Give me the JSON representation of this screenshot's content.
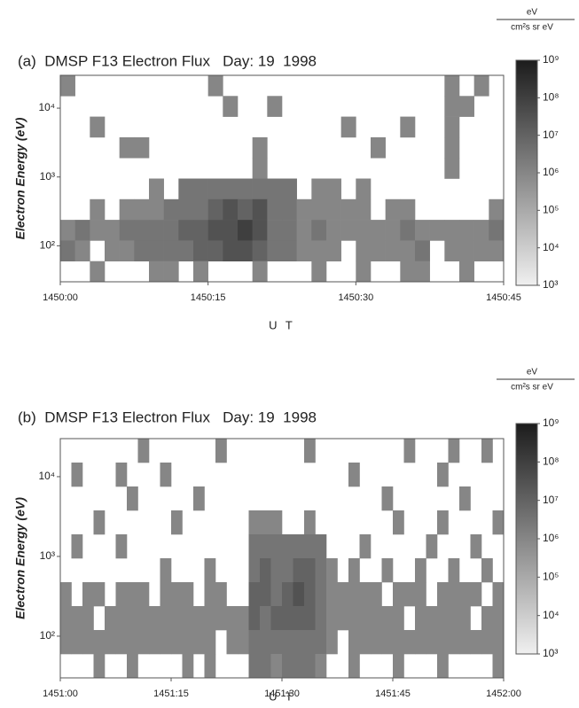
{
  "chart_data": [
    {
      "type": "heatmap",
      "title": "(a)  DMSP F13 Electron Flux   Day: 19  1998",
      "xlabel": "U T",
      "ylabel": "Electron Energy (eV)",
      "xlim": [
        0,
        45
      ],
      "xticks": [
        {
          "value": 0,
          "label": "1450:00"
        },
        {
          "value": 15,
          "label": "1450:15"
        },
        {
          "value": 30,
          "label": "1450:30"
        },
        {
          "value": 45,
          "label": "1450:45"
        }
      ],
      "ylim": [
        30,
        30000
      ],
      "yscale": "log",
      "yticks": [
        {
          "value": 100,
          "label": "10²"
        },
        {
          "value": 1000,
          "label": "10³"
        },
        {
          "value": 10000,
          "label": "10⁴"
        }
      ],
      "zlim": [
        1000,
        1000000000
      ],
      "zscale": "log",
      "zticks": [
        {
          "value": 1000,
          "label": "10³"
        },
        {
          "value": 10000,
          "label": "10⁴"
        },
        {
          "value": 100000,
          "label": "10⁵"
        },
        {
          "value": 1000000,
          "label": "10⁶"
        },
        {
          "value": 10000000,
          "label": "10⁷"
        },
        {
          "value": 100000000,
          "label": "10⁸"
        },
        {
          "value": 1000000000,
          "label": "10⁹"
        }
      ],
      "colorbar_unit": {
        "numerator": "eV",
        "denominator": "cm²s sr eV"
      },
      "colors": [
        "#f0f0f0",
        "#1c1c1c"
      ],
      "z": [
        [
          1000000.0,
          null,
          null,
          null,
          null,
          null,
          null,
          null,
          null,
          null,
          1000000.0,
          null,
          null,
          null,
          null,
          null,
          null,
          null,
          null,
          null,
          null,
          null,
          null,
          null,
          null,
          null,
          1000000.0,
          null,
          1000000.0,
          null
        ],
        [
          null,
          null,
          null,
          null,
          null,
          null,
          null,
          null,
          null,
          null,
          null,
          1000000.0,
          null,
          null,
          1000000.0,
          null,
          null,
          null,
          null,
          null,
          null,
          null,
          null,
          null,
          null,
          null,
          1000000.0,
          1000000.0,
          null,
          null
        ],
        [
          null,
          null,
          1000000.0,
          null,
          null,
          null,
          null,
          null,
          null,
          null,
          null,
          null,
          null,
          null,
          null,
          null,
          null,
          null,
          null,
          1000000.0,
          null,
          null,
          null,
          1000000.0,
          null,
          null,
          1000000.0,
          null,
          null,
          null
        ],
        [
          null,
          null,
          null,
          null,
          1000000.0,
          1000000.0,
          null,
          null,
          null,
          null,
          null,
          null,
          null,
          1000000.0,
          null,
          null,
          null,
          null,
          null,
          null,
          null,
          1000000.0,
          null,
          null,
          null,
          null,
          1000000.0,
          null,
          null,
          null
        ],
        [
          null,
          null,
          null,
          null,
          null,
          null,
          null,
          null,
          null,
          null,
          null,
          null,
          null,
          1000000.0,
          null,
          null,
          null,
          null,
          null,
          null,
          null,
          null,
          null,
          null,
          null,
          null,
          1000000.0,
          null,
          null,
          null
        ],
        [
          null,
          null,
          null,
          null,
          null,
          null,
          1000000.0,
          null,
          3000000.0,
          3000000.0,
          3000000.0,
          3000000.0,
          3000000.0,
          3000000.0,
          3000000.0,
          3000000.0,
          null,
          1000000.0,
          1000000.0,
          null,
          1000000.0,
          null,
          null,
          null,
          null,
          null,
          null,
          null,
          null,
          null
        ],
        [
          null,
          null,
          1000000.0,
          null,
          1000000.0,
          1000000.0,
          1000000.0,
          3000000.0,
          3000000.0,
          3000000.0,
          10000000.0,
          30000000.0,
          10000000.0,
          30000000.0,
          3000000.0,
          3000000.0,
          1000000.0,
          1000000.0,
          1000000.0,
          1000000.0,
          1000000.0,
          null,
          1000000.0,
          1000000.0,
          null,
          null,
          null,
          null,
          null,
          1000000.0
        ],
        [
          1000000.0,
          3000000.0,
          1000000.0,
          1000000.0,
          3000000.0,
          3000000.0,
          3000000.0,
          3000000.0,
          10000000.0,
          10000000.0,
          30000000.0,
          30000000.0,
          100000000.0,
          30000000.0,
          3000000.0,
          3000000.0,
          1000000.0,
          3000000.0,
          1000000.0,
          1000000.0,
          1000000.0,
          1000000.0,
          1000000.0,
          3000000.0,
          1000000.0,
          1000000.0,
          1000000.0,
          1000000.0,
          1000000.0,
          3000000.0
        ],
        [
          3000000.0,
          1000000.0,
          null,
          1000000.0,
          1000000.0,
          3000000.0,
          3000000.0,
          3000000.0,
          3000000.0,
          10000000.0,
          10000000.0,
          30000000.0,
          30000000.0,
          10000000.0,
          3000000.0,
          3000000.0,
          1000000.0,
          1000000.0,
          1000000.0,
          null,
          1000000.0,
          1000000.0,
          1000000.0,
          1000000.0,
          3000000.0,
          null,
          1000000.0,
          1000000.0,
          1000000.0,
          1000000.0
        ],
        [
          null,
          null,
          1000000.0,
          null,
          null,
          null,
          1000000.0,
          1000000.0,
          null,
          1000000.0,
          null,
          null,
          null,
          1000000.0,
          null,
          null,
          null,
          1000000.0,
          null,
          null,
          1000000.0,
          null,
          null,
          1000000.0,
          1000000.0,
          null,
          null,
          1000000.0,
          null,
          null
        ]
      ]
    },
    {
      "type": "heatmap",
      "title": "(b)  DMSP F13 Electron Flux   Day: 19  1998",
      "xlabel": "U T",
      "ylabel": "Electron Energy (eV)",
      "xlim": [
        0,
        60
      ],
      "xticks": [
        {
          "value": 0,
          "label": "1451:00"
        },
        {
          "value": 15,
          "label": "1451:15"
        },
        {
          "value": 30,
          "label": "1451:30"
        },
        {
          "value": 45,
          "label": "1451:45"
        },
        {
          "value": 60,
          "label": "1452:00"
        }
      ],
      "ylim": [
        30,
        30000
      ],
      "yscale": "log",
      "yticks": [
        {
          "value": 100,
          "label": "10²"
        },
        {
          "value": 1000,
          "label": "10³"
        },
        {
          "value": 10000,
          "label": "10⁴"
        }
      ],
      "zlim": [
        1000,
        1000000000
      ],
      "zscale": "log",
      "zticks": [
        {
          "value": 1000,
          "label": "10³"
        },
        {
          "value": 10000,
          "label": "10⁴"
        },
        {
          "value": 100000,
          "label": "10⁵"
        },
        {
          "value": 1000000,
          "label": "10⁶"
        },
        {
          "value": 10000000,
          "label": "10⁷"
        },
        {
          "value": 100000000,
          "label": "10⁸"
        },
        {
          "value": 1000000000,
          "label": "10⁹"
        }
      ],
      "colorbar_unit": {
        "numerator": "eV",
        "denominator": "cm²s sr eV"
      },
      "colors": [
        "#f0f0f0",
        "#1c1c1c"
      ],
      "z": [
        [
          null,
          null,
          null,
          null,
          null,
          null,
          null,
          1000000.0,
          null,
          null,
          null,
          null,
          null,
          null,
          1000000.0,
          null,
          null,
          null,
          null,
          null,
          null,
          null,
          1000000.0,
          null,
          null,
          null,
          null,
          null,
          null,
          null,
          null,
          1000000.0,
          null,
          null,
          null,
          1000000.0,
          null,
          null,
          1000000.0,
          null
        ],
        [
          null,
          1000000.0,
          null,
          null,
          null,
          1000000.0,
          null,
          null,
          null,
          1000000.0,
          null,
          null,
          null,
          null,
          null,
          null,
          null,
          null,
          null,
          null,
          null,
          null,
          null,
          null,
          null,
          null,
          1000000.0,
          null,
          null,
          null,
          null,
          null,
          null,
          null,
          1000000.0,
          null,
          null,
          null,
          null,
          null
        ],
        [
          null,
          null,
          null,
          null,
          null,
          null,
          1000000.0,
          null,
          null,
          null,
          null,
          null,
          1000000.0,
          null,
          null,
          null,
          null,
          null,
          null,
          null,
          null,
          null,
          null,
          null,
          null,
          null,
          null,
          null,
          null,
          1000000.0,
          null,
          null,
          null,
          null,
          null,
          null,
          1000000.0,
          null,
          null,
          null
        ],
        [
          null,
          null,
          null,
          1000000.0,
          null,
          null,
          null,
          null,
          null,
          null,
          1000000.0,
          null,
          null,
          null,
          null,
          null,
          null,
          1000000.0,
          1000000.0,
          1000000.0,
          null,
          null,
          1000000.0,
          null,
          null,
          null,
          null,
          null,
          null,
          null,
          1000000.0,
          null,
          null,
          null,
          1000000.0,
          null,
          null,
          null,
          null,
          1000000.0
        ],
        [
          null,
          1000000.0,
          null,
          null,
          null,
          1000000.0,
          null,
          null,
          null,
          null,
          null,
          null,
          null,
          null,
          null,
          null,
          null,
          3000000.0,
          3000000.0,
          3000000.0,
          3000000.0,
          3000000.0,
          3000000.0,
          3000000.0,
          null,
          null,
          null,
          1000000.0,
          null,
          null,
          null,
          null,
          null,
          1000000.0,
          null,
          null,
          null,
          1000000.0,
          null,
          null
        ],
        [
          null,
          null,
          null,
          null,
          null,
          null,
          null,
          null,
          null,
          1000000.0,
          null,
          null,
          null,
          1000000.0,
          null,
          null,
          null,
          3000000.0,
          10000000.0,
          3000000.0,
          3000000.0,
          10000000.0,
          10000000.0,
          3000000.0,
          1000000.0,
          null,
          1000000.0,
          null,
          null,
          1000000.0,
          null,
          null,
          1000000.0,
          null,
          null,
          1000000.0,
          null,
          null,
          1000000.0,
          null
        ],
        [
          1000000.0,
          null,
          1000000.0,
          1000000.0,
          null,
          1000000.0,
          1000000.0,
          1000000.0,
          null,
          1000000.0,
          1000000.0,
          1000000.0,
          null,
          1000000.0,
          1000000.0,
          null,
          null,
          10000000.0,
          10000000.0,
          3000000.0,
          10000000.0,
          30000000.0,
          10000000.0,
          3000000.0,
          1000000.0,
          1000000.0,
          1000000.0,
          1000000.0,
          1000000.0,
          null,
          1000000.0,
          1000000.0,
          1000000.0,
          null,
          1000000.0,
          1000000.0,
          1000000.0,
          1000000.0,
          null,
          1000000.0
        ],
        [
          1000000.0,
          1000000.0,
          1000000.0,
          null,
          1000000.0,
          1000000.0,
          1000000.0,
          1000000.0,
          1000000.0,
          1000000.0,
          1000000.0,
          1000000.0,
          1000000.0,
          1000000.0,
          1000000.0,
          1000000.0,
          1000000.0,
          10000000.0,
          3000000.0,
          10000000.0,
          10000000.0,
          10000000.0,
          10000000.0,
          3000000.0,
          1000000.0,
          1000000.0,
          1000000.0,
          1000000.0,
          1000000.0,
          1000000.0,
          1000000.0,
          null,
          1000000.0,
          1000000.0,
          1000000.0,
          1000000.0,
          1000000.0,
          null,
          1000000.0,
          1000000.0
        ],
        [
          1000000.0,
          1000000.0,
          1000000.0,
          1000000.0,
          1000000.0,
          1000000.0,
          1000000.0,
          1000000.0,
          1000000.0,
          1000000.0,
          1000000.0,
          1000000.0,
          1000000.0,
          1000000.0,
          null,
          1000000.0,
          1000000.0,
          3000000.0,
          3000000.0,
          3000000.0,
          3000000.0,
          3000000.0,
          3000000.0,
          3000000.0,
          1000000.0,
          null,
          1000000.0,
          1000000.0,
          1000000.0,
          1000000.0,
          1000000.0,
          1000000.0,
          1000000.0,
          1000000.0,
          1000000.0,
          1000000.0,
          1000000.0,
          1000000.0,
          1000000.0,
          1000000.0
        ],
        [
          null,
          null,
          null,
          1000000.0,
          null,
          null,
          1000000.0,
          null,
          null,
          null,
          null,
          1000000.0,
          null,
          1000000.0,
          null,
          null,
          null,
          3000000.0,
          3000000.0,
          1000000.0,
          3000000.0,
          3000000.0,
          3000000.0,
          1000000.0,
          null,
          null,
          1000000.0,
          null,
          null,
          null,
          1000000.0,
          null,
          null,
          null,
          1000000.0,
          null,
          null,
          null,
          null,
          1000000.0
        ]
      ]
    }
  ]
}
